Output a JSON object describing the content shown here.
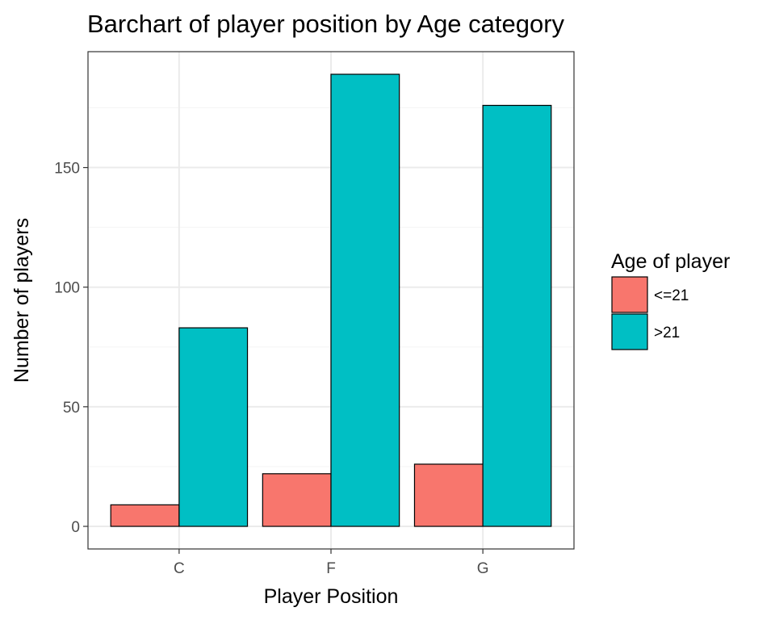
{
  "chart_data": {
    "type": "bar",
    "title": "Barchart of player position by Age category",
    "xlabel": "Player Position",
    "ylabel": "Number of players",
    "categories": [
      "C",
      "F",
      "G"
    ],
    "series": [
      {
        "name": "<=21",
        "values": [
          9,
          22,
          26
        ],
        "color": "#F8766D"
      },
      {
        "name": ">21",
        "values": [
          83,
          189,
          176
        ],
        "color": "#00BFC4"
      }
    ],
    "ylim": [
      -9.45,
      198.45
    ],
    "yticks": [
      0,
      50,
      100,
      150
    ],
    "ytick_labels": [
      "0",
      "50",
      "100",
      "150"
    ],
    "grid": true,
    "legend": {
      "title": "Age of player",
      "position": "right"
    },
    "colors": {
      "panel_border": "#333333",
      "grid_major": "#ebebeb",
      "grid_minor": "#f5f5f5",
      "tick_text": "#4d4d4d"
    }
  }
}
